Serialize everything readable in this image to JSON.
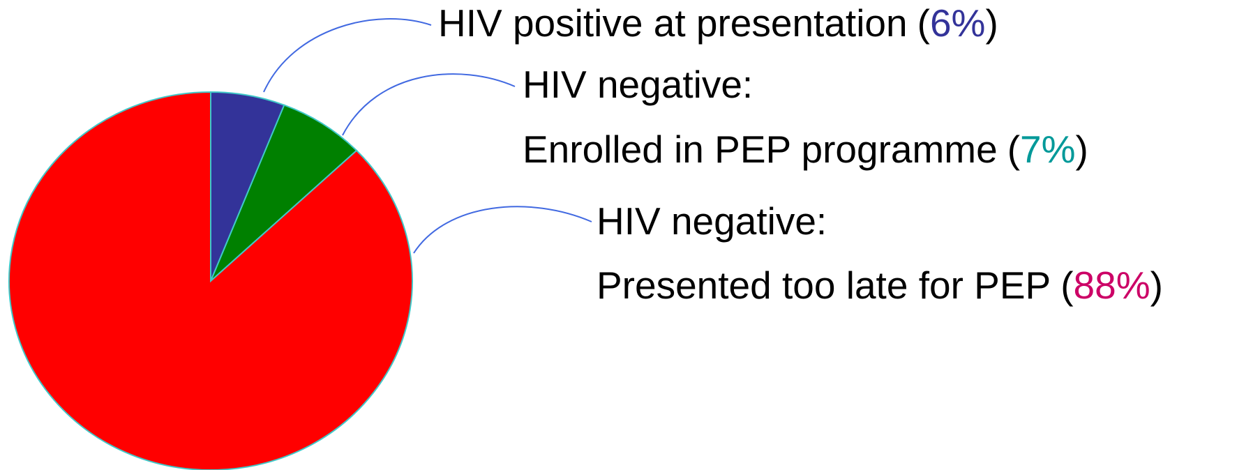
{
  "chart_data": {
    "type": "pie",
    "categories": [
      [
        "HIV positive at presentation"
      ],
      [
        "HIV negative:",
        "Enrolled in PEP programme"
      ],
      [
        "HIV negative:",
        "Presented too late for PEP"
      ]
    ],
    "values": [
      6,
      7,
      88
    ],
    "value_labels": [
      "6%",
      "7%",
      "88%"
    ],
    "brackets": [
      "(",
      ")"
    ],
    "colors": [
      "#333399",
      "#008000",
      "#ff0000"
    ],
    "label_colors": [
      "#333399",
      "#009999",
      "#cc0066"
    ]
  }
}
